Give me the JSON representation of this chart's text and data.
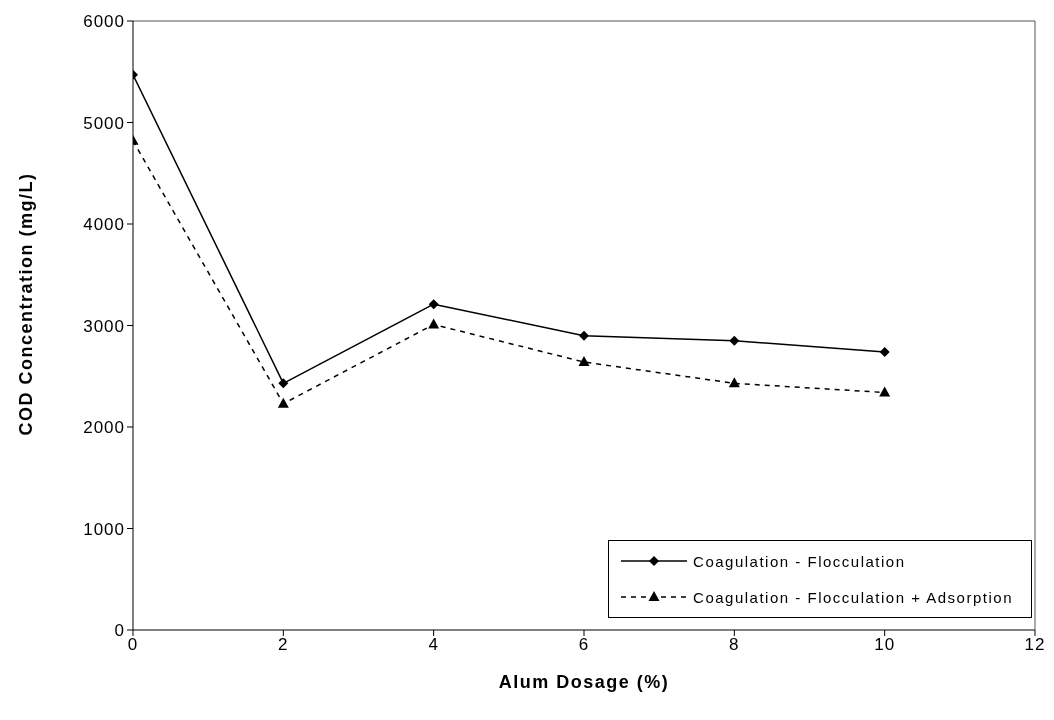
{
  "chart_data": {
    "type": "line",
    "xlabel": "Alum Dosage (%)",
    "ylabel": "COD Concentration (mg/L)",
    "x": [
      0,
      2,
      4,
      6,
      8,
      10
    ],
    "series": [
      {
        "name": "Coagulation - Flocculation",
        "color": "#000000",
        "marker": "diamond",
        "line_style": "solid",
        "values": [
          5470,
          2430,
          3210,
          2900,
          2850,
          2740
        ]
      },
      {
        "name": "Coagulation - Flocculation + Adsorption",
        "color": "#000000",
        "marker": "triangle",
        "line_style": "dashed",
        "values": [
          4820,
          2230,
          3010,
          2640,
          2430,
          2340
        ]
      }
    ],
    "xlim": [
      0,
      12
    ],
    "xticks": [
      0,
      2,
      4,
      6,
      8,
      10,
      12
    ],
    "ylim": [
      0,
      6000
    ],
    "yticks": [
      0,
      1000,
      2000,
      3000,
      4000,
      5000,
      6000
    ],
    "grid": false,
    "legend": "bottom right"
  }
}
